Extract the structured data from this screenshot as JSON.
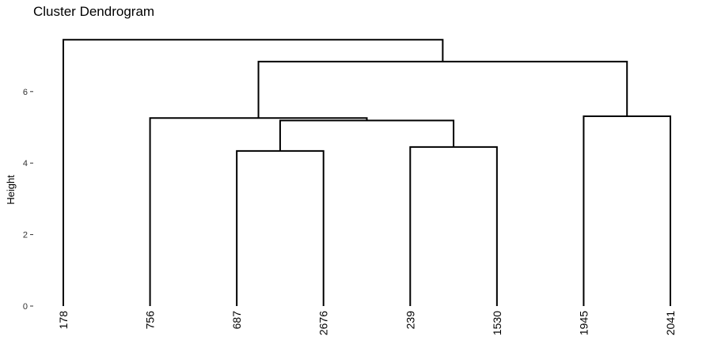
{
  "chart_data": {
    "type": "dendrogram",
    "title": "Cluster Dendrogram",
    "ylabel": "Height",
    "ylim": [
      0,
      7.4
    ],
    "yticks": [
      0,
      2,
      4,
      6
    ],
    "grid": false,
    "leaves": [
      "178",
      "756",
      "687",
      "2676",
      "239",
      "1530",
      "1945",
      "2041"
    ],
    "merges": [
      {
        "id": "m1",
        "left": "leaf:687",
        "right": "leaf:2676",
        "height": 4.34
      },
      {
        "id": "m2",
        "left": "leaf:239",
        "right": "leaf:1530",
        "height": 4.45
      },
      {
        "id": "m3",
        "left": "node:m1",
        "right": "node:m2",
        "height": 5.19
      },
      {
        "id": "m4",
        "left": "leaf:756",
        "right": "node:m3",
        "height": 5.26
      },
      {
        "id": "m5",
        "left": "leaf:1945",
        "right": "leaf:2041",
        "height": 5.31
      },
      {
        "id": "m6",
        "left": "node:m4",
        "right": "node:m5",
        "height": 6.84
      },
      {
        "id": "m7",
        "left": "leaf:178",
        "right": "node:m6",
        "height": 7.45
      }
    ]
  }
}
